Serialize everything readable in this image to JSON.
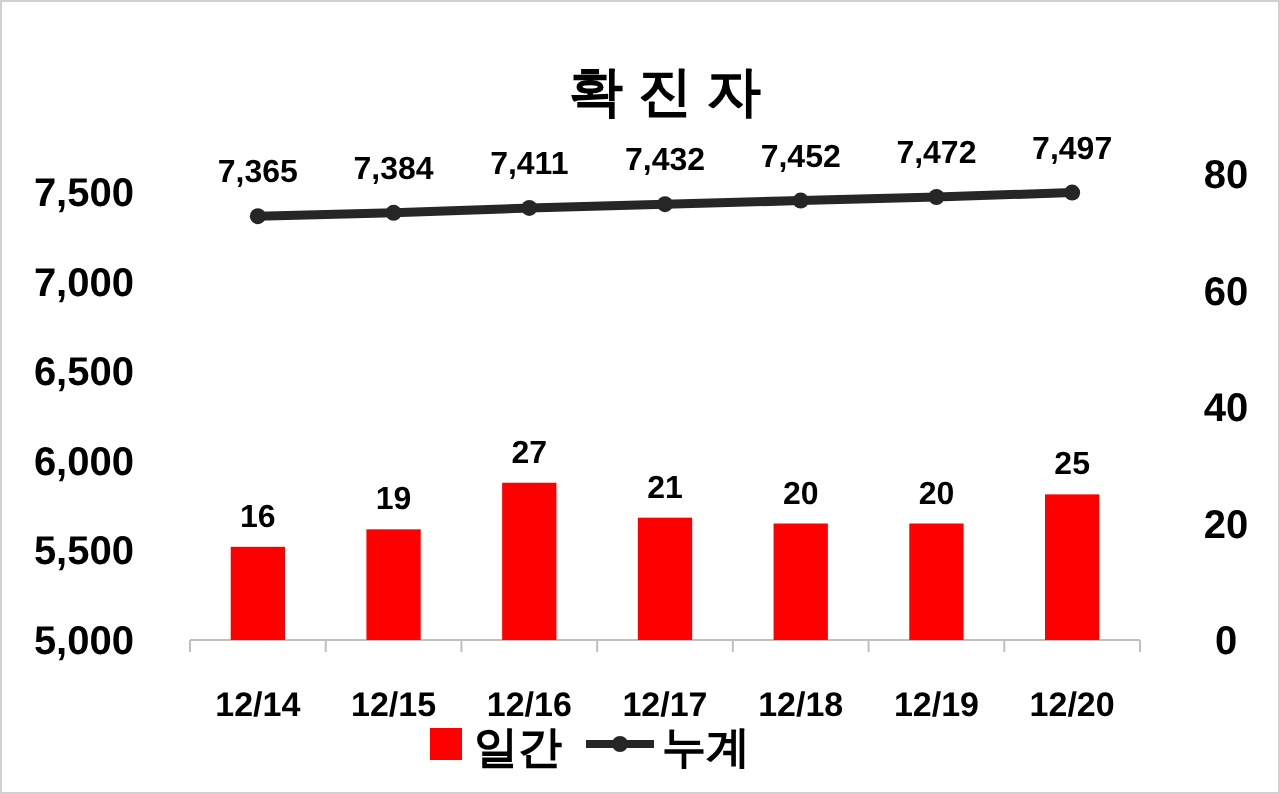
{
  "chart_data": {
    "type": "bar",
    "title": "확 진 자",
    "categories": [
      "12/14",
      "12/15",
      "12/16",
      "12/17",
      "12/18",
      "12/19",
      "12/20"
    ],
    "series": [
      {
        "name": "일간",
        "axis": "y2",
        "color": "#ff0000",
        "values": [
          16,
          19,
          27,
          21,
          20,
          20,
          25
        ],
        "value_labels": [
          "16",
          "19",
          "27",
          "21",
          "20",
          "20",
          "25"
        ]
      },
      {
        "name": "누계",
        "type": "line",
        "color": "#262626",
        "values": [
          7365,
          7384,
          7411,
          7432,
          7452,
          7472,
          7497
        ],
        "value_labels": [
          "7,365",
          "7,384",
          "7,411",
          "7,432",
          "7,452",
          "7,472",
          "7,497"
        ]
      }
    ],
    "ylim": [
      5000,
      7500
    ],
    "yticks": [
      {
        "value": 5000,
        "label": "5,000"
      },
      {
        "value": 5500,
        "label": "5,500"
      },
      {
        "value": 6000,
        "label": "6,000"
      },
      {
        "value": 6500,
        "label": "6,500"
      },
      {
        "value": 7000,
        "label": "7,000"
      },
      {
        "value": 7500,
        "label": "7,500"
      }
    ],
    "y2lim": [
      0,
      80
    ],
    "y2ticks": [
      0,
      20,
      40,
      60,
      80
    ],
    "marker": "circle",
    "grid": false,
    "legend": "bottom"
  }
}
